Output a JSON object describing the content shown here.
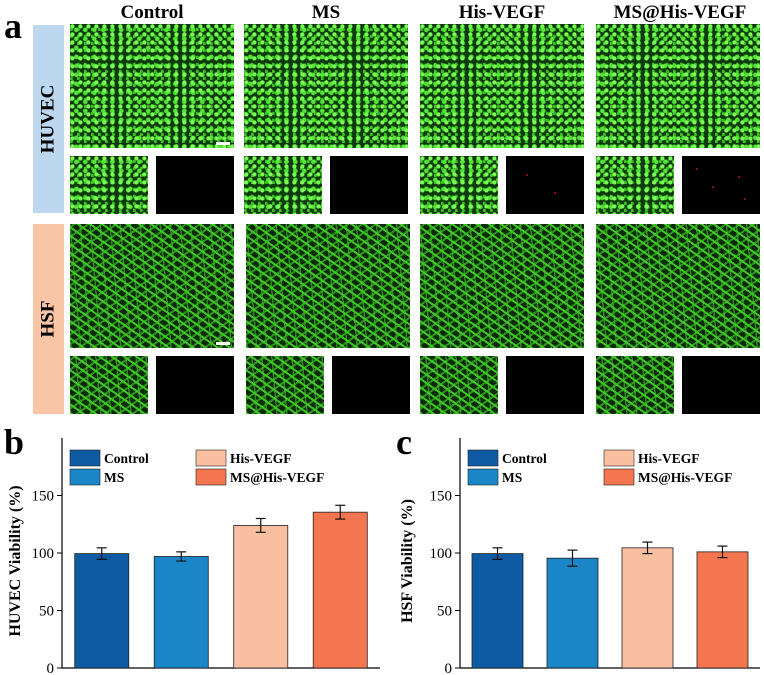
{
  "panels": {
    "a": "a",
    "b": "b",
    "c": "c"
  },
  "columns": [
    "Control",
    "MS",
    "His-VEGF",
    "MS@His-VEGF"
  ],
  "rows": [
    {
      "label": "HUVEC",
      "color": "#bcd7ee"
    },
    {
      "label": "HSF",
      "color": "#f8c5a6"
    }
  ],
  "chart_data": [
    {
      "type": "bar",
      "panel": "b",
      "categories": [
        "Control",
        "MS",
        "His-VEGF",
        "MS@His-VEGF"
      ],
      "values": [
        99.5,
        97,
        124,
        135.5
      ],
      "errors": [
        5,
        4,
        6,
        6
      ],
      "colors": [
        "#0e5ba3",
        "#1a86c8",
        "#f8bfa0",
        "#f47650"
      ],
      "ylabel": "HUVEC Viability (%)",
      "ylim": [
        0,
        200
      ],
      "yticks": [
        0,
        50,
        100,
        150
      ],
      "legend_placement": "top",
      "grid": false
    },
    {
      "type": "bar",
      "panel": "c",
      "categories": [
        "Control",
        "MS",
        "His-VEGF",
        "MS@His-VEGF"
      ],
      "values": [
        99.5,
        95.5,
        104.5,
        101
      ],
      "errors": [
        5,
        7,
        5,
        5
      ],
      "colors": [
        "#0e5ba3",
        "#1a86c8",
        "#f8bfa0",
        "#f47650"
      ],
      "ylabel": "HSF Viability (%)",
      "ylim": [
        0,
        200
      ],
      "yticks": [
        0,
        50,
        100,
        150
      ],
      "legend_placement": "top",
      "grid": false
    }
  ]
}
